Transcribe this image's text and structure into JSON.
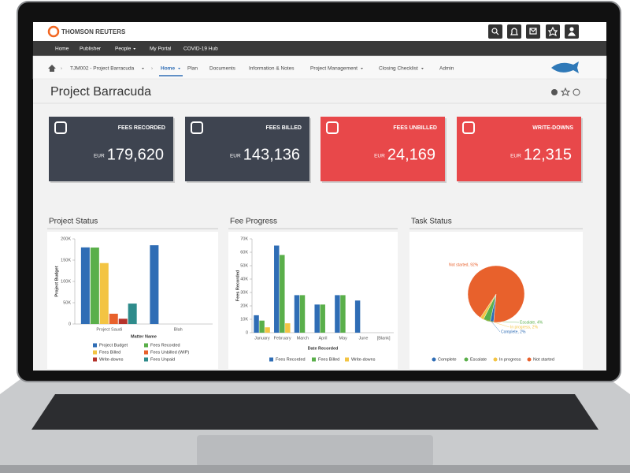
{
  "header": {
    "brand": "THOMSON REUTERS"
  },
  "nav": {
    "items": [
      "Home",
      "Publisher",
      "People",
      "My Portal",
      "COVID-19 Hub"
    ]
  },
  "breadcrumb": {
    "project": "TJM002 - Project Barracuda",
    "tabs": [
      "Home",
      "Plan",
      "Documents",
      "Information & Notes",
      "Project Management",
      "Closing Checklist",
      "Admin"
    ]
  },
  "page_title": "Project Barracuda",
  "kpis": [
    {
      "label": "FEES RECORDED",
      "currency": "EUR",
      "value": "179,620",
      "color": "#3e4450"
    },
    {
      "label": "FEES BILLED",
      "currency": "EUR",
      "value": "143,136",
      "color": "#3e4450"
    },
    {
      "label": "FEES UNBILLED",
      "currency": "EUR",
      "value": "24,169",
      "color": "#e8484a"
    },
    {
      "label": "WRITE-DOWNS",
      "currency": "EUR",
      "value": "12,315",
      "color": "#e8484a"
    }
  ],
  "chart_data": [
    {
      "type": "bar",
      "title": "Project Status",
      "x_label": "Matter Name",
      "y_label": "Project Budget",
      "categories": [
        "Project Saudi",
        "Blah"
      ],
      "series": [
        {
          "name": "Project Budget",
          "color": "#2f6db5",
          "values": [
            180000,
            185000
          ]
        },
        {
          "name": "Fees Recorded",
          "color": "#5aaf4a",
          "values": [
            179620,
            0
          ]
        },
        {
          "name": "Fees Billed",
          "color": "#f3c443",
          "values": [
            143136,
            0
          ]
        },
        {
          "name": "Fees Unbilled (WIP)",
          "color": "#e8612c",
          "values": [
            24169,
            0
          ]
        },
        {
          "name": "Write-downs",
          "color": "#b5322a",
          "values": [
            12315,
            0
          ]
        },
        {
          "name": "Fees Unpaid",
          "color": "#2e8b8b",
          "values": [
            48000,
            0
          ]
        }
      ],
      "ylim": [
        0,
        200000
      ],
      "yticks": [
        0,
        {
          "value": 50000,
          "label": "50K"
        },
        {
          "value": 100000,
          "label": "100K"
        },
        {
          "value": 150000,
          "label": "150K"
        },
        {
          "value": 200000,
          "label": "200K"
        }
      ]
    },
    {
      "type": "bar",
      "title": "Fee Progress",
      "x_label": "Date Recorded",
      "y_label": "Fees Recorded",
      "categories": [
        "January",
        "February",
        "March",
        "April",
        "May",
        "June",
        "[Blank]"
      ],
      "series": [
        {
          "name": "Fees Recorded",
          "color": "#2f6db5",
          "values": [
            13000,
            65000,
            28000,
            21000,
            28000,
            24000,
            0
          ]
        },
        {
          "name": "Fees Billed",
          "color": "#5aaf4a",
          "values": [
            9000,
            58000,
            28000,
            21000,
            28000,
            0,
            0
          ]
        },
        {
          "name": "Write-downs",
          "color": "#f3c443",
          "values": [
            4000,
            7000,
            0,
            0,
            0,
            0,
            0
          ]
        }
      ],
      "ylim": [
        0,
        70000
      ],
      "yticks": [
        0,
        {
          "value": 10000,
          "label": "10K"
        },
        {
          "value": 20000,
          "label": "20K"
        },
        {
          "value": 30000,
          "label": "30K"
        },
        {
          "value": 40000,
          "label": "40K"
        },
        {
          "value": 50000,
          "label": "50K"
        },
        {
          "value": 60000,
          "label": "60K"
        },
        {
          "value": 70000,
          "label": "70K"
        }
      ]
    },
    {
      "type": "pie",
      "title": "Task Status",
      "categories": [
        "Complete",
        "Escalate",
        "In progress",
        "Not started"
      ],
      "values": [
        2,
        4,
        2,
        92
      ],
      "value_labels": [
        "Complete, 2%",
        "Escalate, 4%",
        "In progress, 2%",
        "Not started, 92%"
      ],
      "colors": [
        "#2f6db5",
        "#5aaf4a",
        "#f3c443",
        "#e8612c"
      ]
    }
  ]
}
